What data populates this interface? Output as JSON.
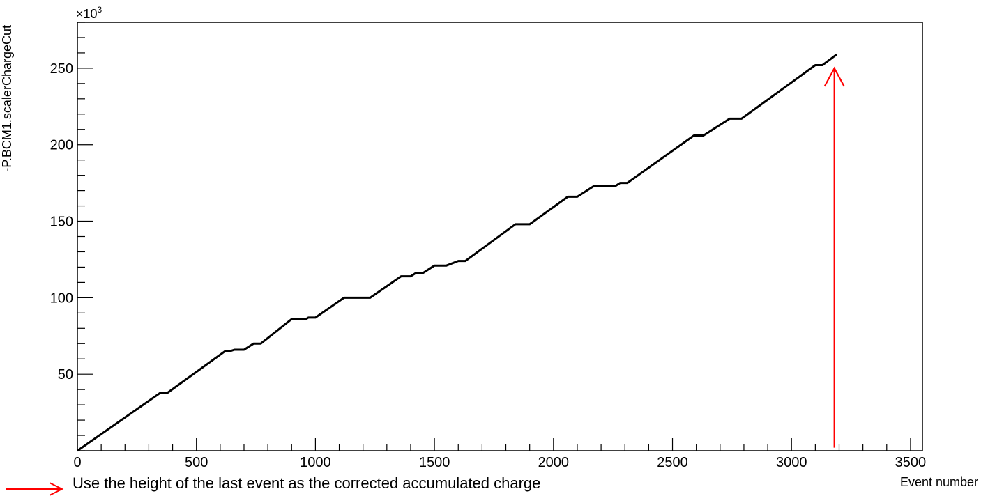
{
  "chart_data": {
    "type": "line",
    "title": "",
    "xlabel": "Event number",
    "ylabel": "-P.BCM1.scalerChargeCut",
    "y_multiplier_label": "×10",
    "y_multiplier_exp": "3",
    "xlim": [
      0,
      3550
    ],
    "ylim": [
      0,
      280
    ],
    "x_ticks": [
      0,
      500,
      1000,
      1500,
      2000,
      2500,
      3000,
      3500
    ],
    "x_tick_labels": [
      "0",
      "500",
      "1000",
      "1500",
      "2000",
      "2500",
      "3000",
      "3500"
    ],
    "y_ticks": [
      50,
      100,
      150,
      200,
      250
    ],
    "y_tick_labels": [
      "50",
      "100",
      "150",
      "200",
      "250"
    ],
    "grid": false,
    "series": [
      {
        "color": "#000000",
        "x": [
          0,
          350,
          380,
          620,
          640,
          660,
          700,
          740,
          770,
          900,
          960,
          970,
          1000,
          1120,
          1230,
          1360,
          1400,
          1420,
          1450,
          1500,
          1550,
          1600,
          1630,
          1840,
          1900,
          2060,
          2100,
          2170,
          2260,
          2280,
          2310,
          2590,
          2630,
          2740,
          2790,
          3100,
          3130,
          3190
        ],
        "y": [
          0,
          38,
          38,
          65,
          65,
          66,
          66,
          70,
          70,
          86,
          86,
          87,
          87,
          100,
          100,
          114,
          114,
          116,
          116,
          121,
          121,
          124,
          124,
          148,
          148,
          166,
          166,
          173,
          173,
          175,
          175,
          206,
          206,
          217,
          217,
          252,
          252,
          259
        ]
      }
    ],
    "annotations": [
      {
        "type": "arrow",
        "color": "#ff0000",
        "x": 3180,
        "y_from": 2,
        "y_to": 250
      }
    ]
  },
  "legend_note": {
    "arrow_color": "#ff0000",
    "text": "Use the height of the last event as the corrected accumulated charge"
  }
}
